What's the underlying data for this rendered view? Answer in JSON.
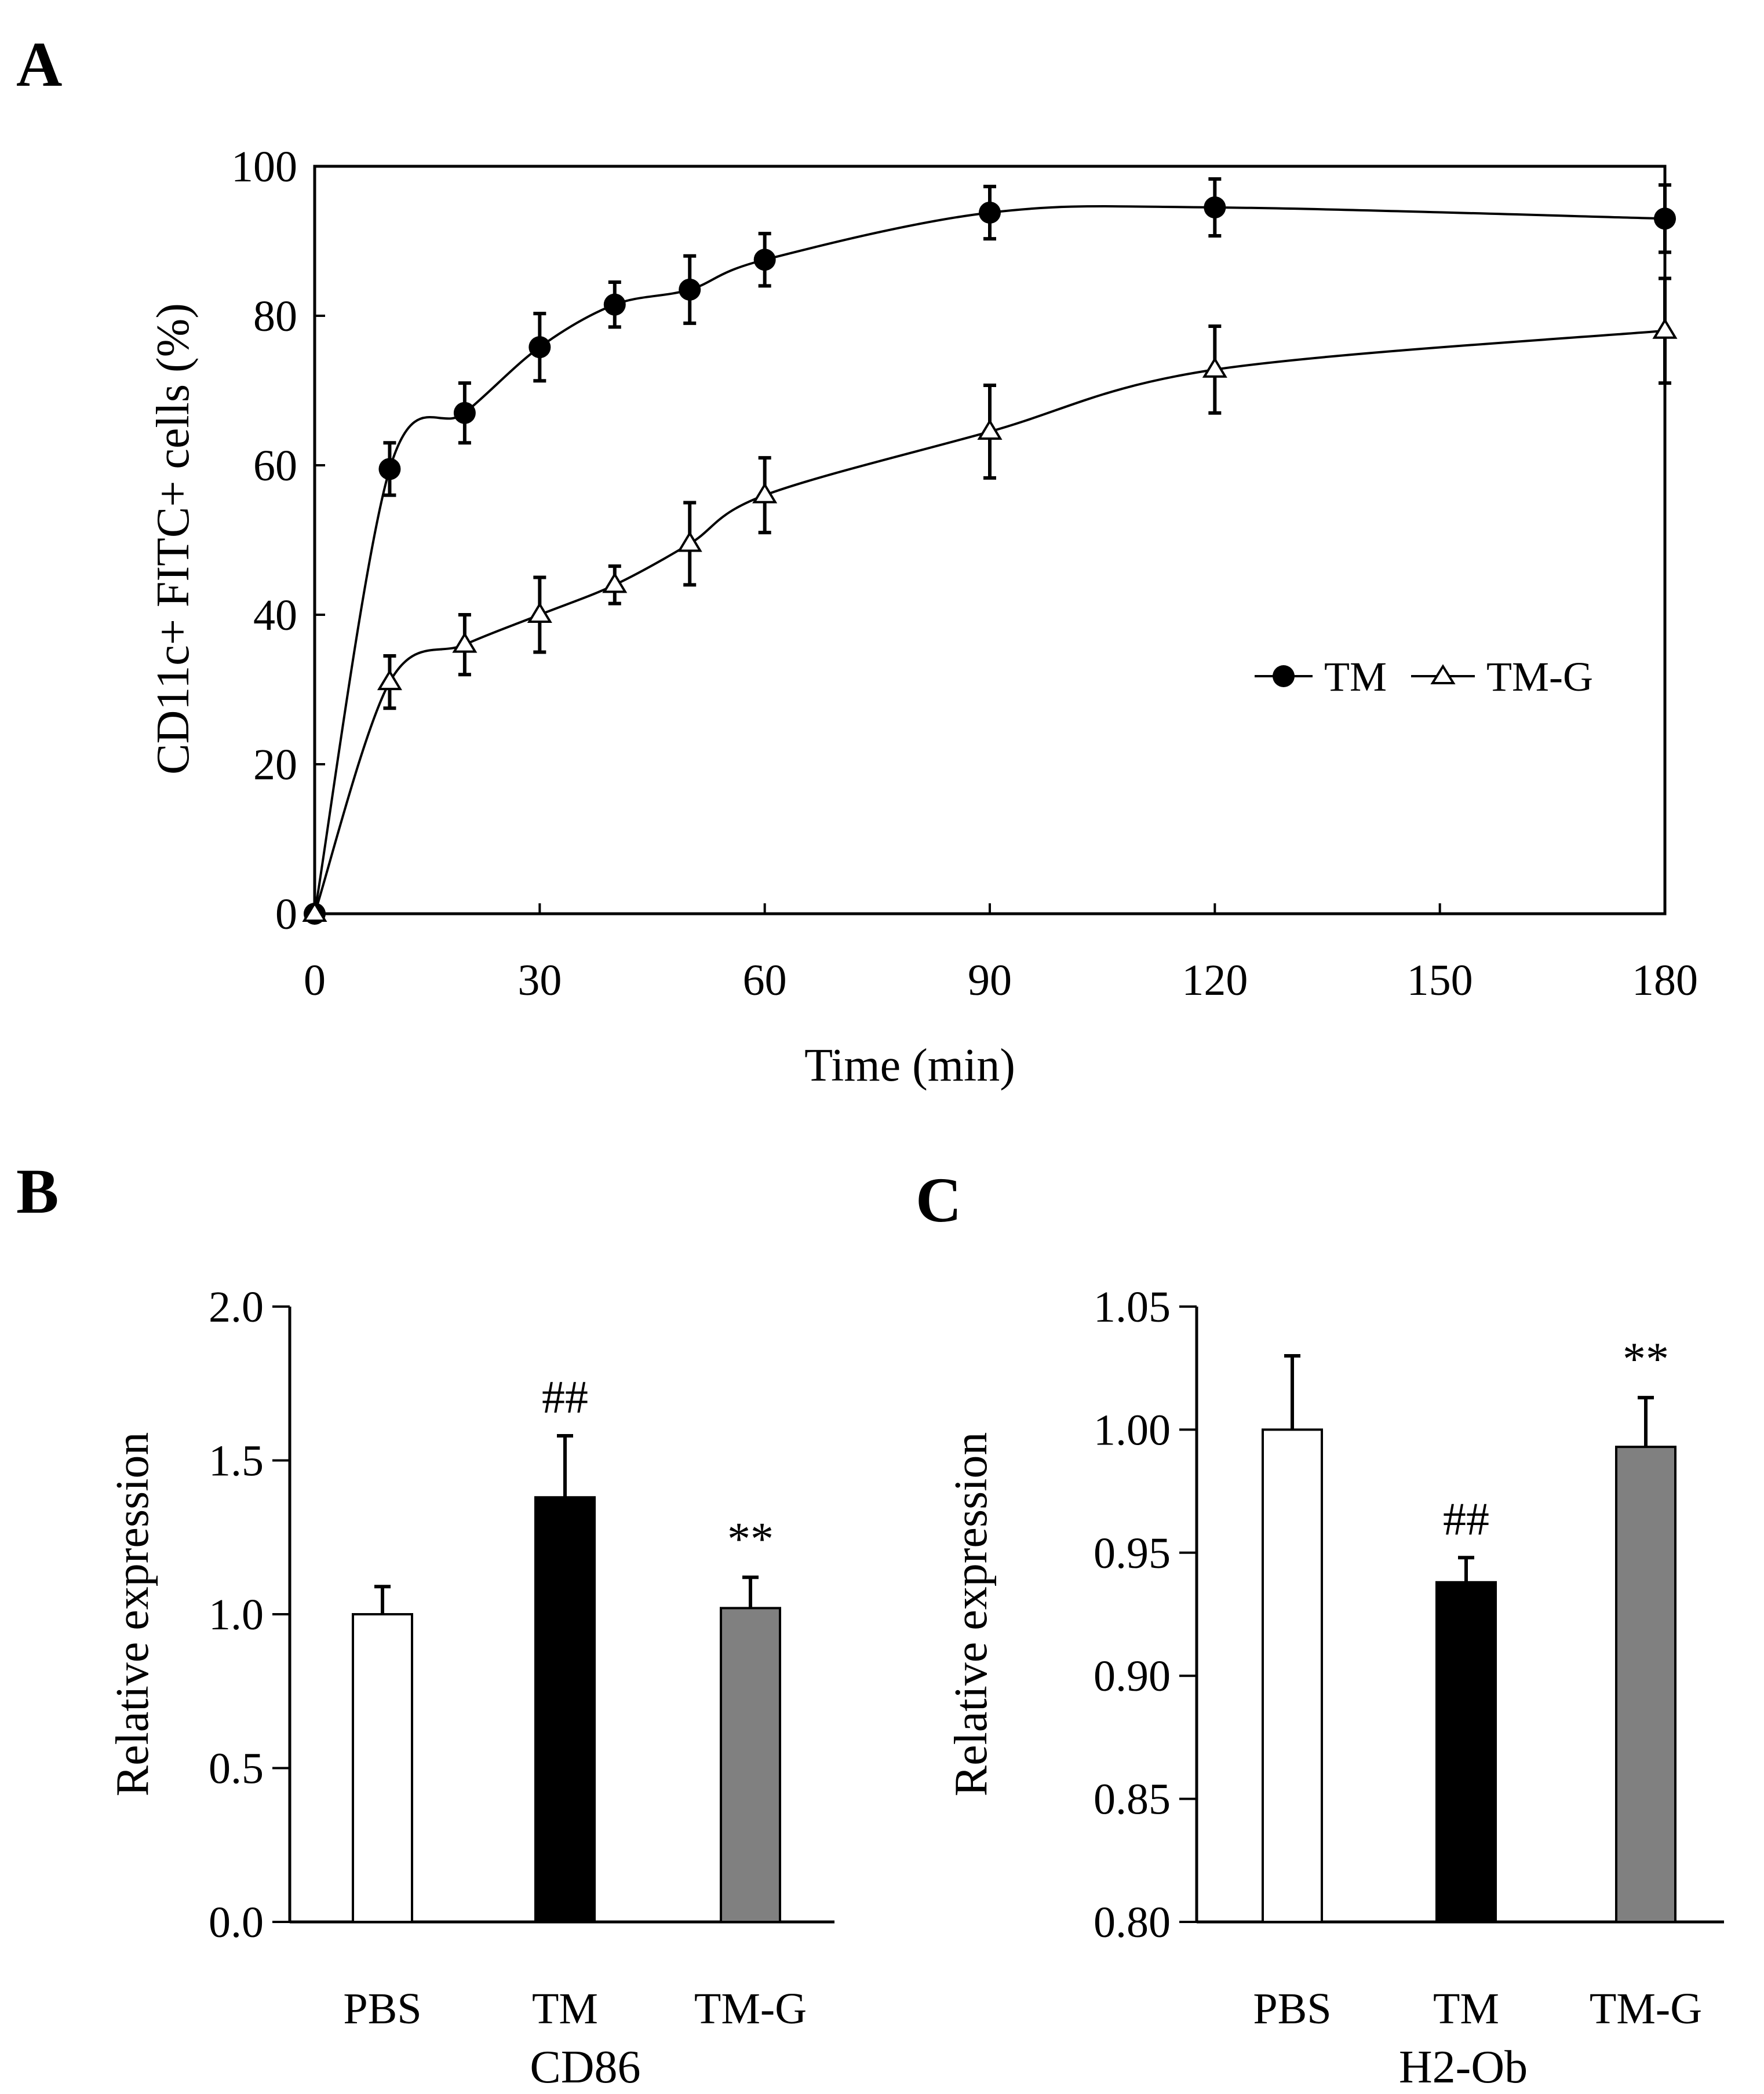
{
  "chart_data": [
    {
      "panel_label": "A",
      "type": "line",
      "xlabel": "Time (min)",
      "ylabel": "CD11c+ FITC+ cells (%)",
      "xlim": [
        0,
        180
      ],
      "ylim": [
        0,
        100
      ],
      "xticks": [
        "0",
        "30",
        "60",
        "90",
        "120",
        "150",
        "180"
      ],
      "yticks": [
        "0",
        "20",
        "40",
        "60",
        "80",
        "100"
      ],
      "legend_position": "right",
      "x": [
        0,
        10,
        20,
        30,
        40,
        50,
        60,
        90,
        120,
        180
      ],
      "series": [
        {
          "name": "TM",
          "marker": "filled-circle",
          "values": [
            0,
            59.5,
            67,
            75.8,
            81.5,
            83.5,
            87.5,
            93.8,
            94.5,
            93
          ],
          "errors": [
            0,
            3.5,
            4,
            4.5,
            3,
            4.5,
            3.5,
            3.5,
            3.8,
            4.5
          ]
        },
        {
          "name": "TM-G",
          "marker": "open-triangle",
          "values": [
            0,
            31,
            36,
            40,
            44,
            49.5,
            56,
            64.5,
            72.8,
            78
          ],
          "errors": [
            0,
            3.5,
            4,
            5,
            2.5,
            5.5,
            5,
            6.2,
            5.8,
            7
          ]
        }
      ]
    },
    {
      "panel_label": "B",
      "type": "bar",
      "xlabel": "CD86",
      "ylabel": "Relative expression",
      "ylim": [
        0,
        2
      ],
      "yticks": [
        "0.0",
        "0.5",
        "1.0",
        "1.5",
        "2.0"
      ],
      "categories": [
        "PBS",
        "TM",
        "TM-G"
      ],
      "values": [
        1.0,
        1.38,
        1.02
      ],
      "errors": [
        0.09,
        0.2,
        0.1
      ],
      "bar_colors": [
        "#ffffff",
        "#000000",
        "#808080"
      ],
      "annotations": [
        "",
        "##",
        "**"
      ]
    },
    {
      "panel_label": "C",
      "type": "bar",
      "xlabel": "H2-Ob",
      "ylabel": "Relative expression",
      "ylim": [
        0.8,
        1.05
      ],
      "yticks": [
        "0.80",
        "0.85",
        "0.90",
        "0.95",
        "1.00",
        "1.05"
      ],
      "categories": [
        "PBS",
        "TM",
        "TM-G"
      ],
      "values": [
        1.0,
        0.938,
        0.993
      ],
      "errors": [
        0.03,
        0.01,
        0.02
      ],
      "bar_colors": [
        "#ffffff",
        "#000000",
        "#808080"
      ],
      "annotations": [
        "",
        "##",
        "**"
      ]
    }
  ]
}
